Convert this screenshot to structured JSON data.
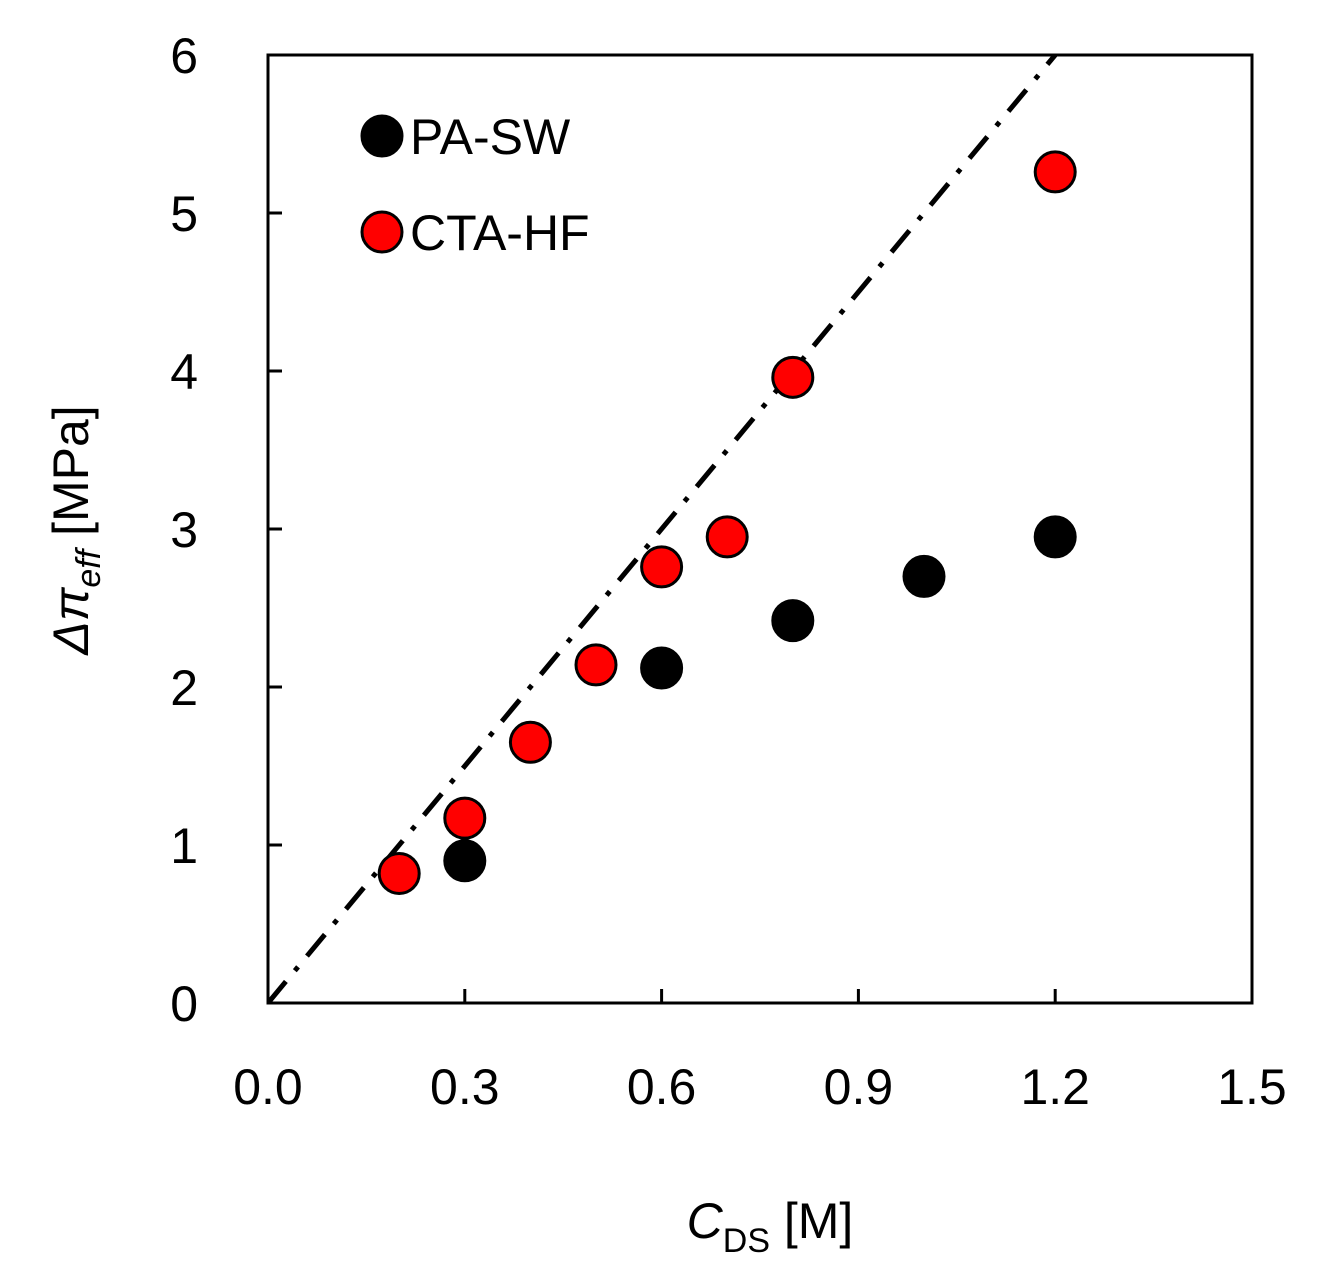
{
  "chart_data": {
    "type": "scatter",
    "title": "",
    "xlabel": {
      "main": "C",
      "sub": "DS",
      "unit": " [M]"
    },
    "ylabel": {
      "main": "Δπ",
      "sub": "eff",
      "unit": " [MPa]"
    },
    "xlim": [
      0.0,
      1.5
    ],
    "ylim": [
      0,
      6
    ],
    "xticks": [
      0.0,
      0.3,
      0.6,
      0.9,
      1.2,
      1.5
    ],
    "xtick_labels": [
      "0.0",
      "0.3",
      "0.6",
      "0.9",
      "1.2",
      "1.5"
    ],
    "yticks": [
      0,
      1,
      2,
      3,
      4,
      5,
      6
    ],
    "ytick_labels": [
      "0",
      "1",
      "2",
      "3",
      "4",
      "5",
      "6"
    ],
    "grid": false,
    "legend_position": "top-left",
    "series": [
      {
        "name": "PA-SW",
        "color": "#000000",
        "x": [
          0.3,
          0.6,
          0.8,
          1.0,
          1.2
        ],
        "y": [
          0.9,
          2.12,
          2.42,
          2.7,
          2.95
        ]
      },
      {
        "name": "CTA-HF",
        "color": "#ff0000",
        "x": [
          0.2,
          0.3,
          0.4,
          0.5,
          0.6,
          0.7,
          0.8,
          1.2
        ],
        "y": [
          0.82,
          1.17,
          1.65,
          2.14,
          2.76,
          2.95,
          3.96,
          5.26
        ]
      }
    ],
    "reference_line": {
      "style": "dash-dot",
      "color": "#000000",
      "x": [
        0.0,
        1.2
      ],
      "y": [
        0.0,
        6.0
      ]
    }
  }
}
